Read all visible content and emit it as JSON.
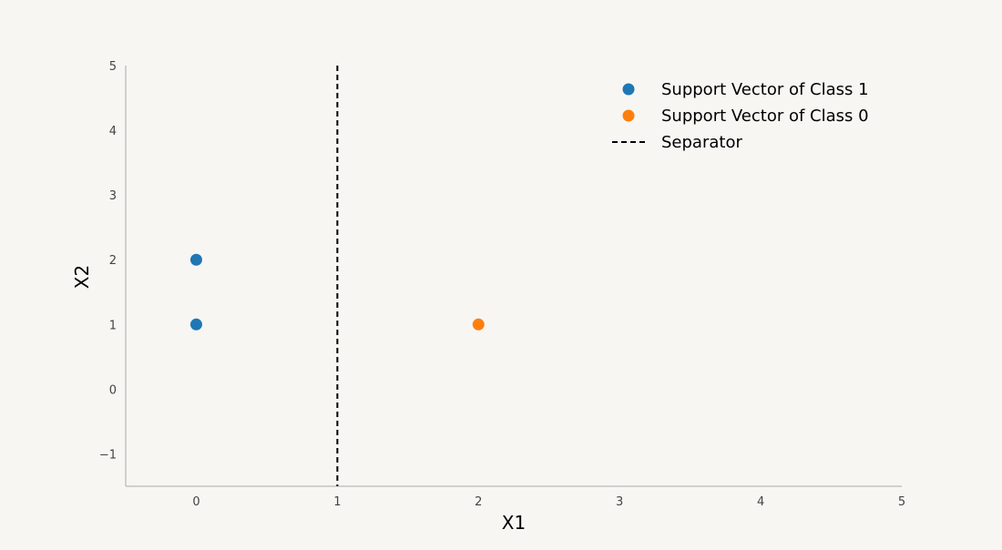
{
  "chart_data": {
    "type": "scatter",
    "title": "",
    "xlabel": "X1",
    "ylabel": "X2",
    "xlim": [
      -0.5,
      5
    ],
    "ylim": [
      -1.5,
      5
    ],
    "xticks": [
      0,
      1,
      2,
      3,
      4,
      5
    ],
    "yticks": [
      -1,
      0,
      1,
      2,
      3,
      4,
      5
    ],
    "xtick_labels": [
      "0",
      "1",
      "2",
      "3",
      "4",
      "5"
    ],
    "ytick_labels": [
      "−1",
      "0",
      "1",
      "2",
      "3",
      "4",
      "5"
    ],
    "grid": false,
    "legend_position": "top-right",
    "series": [
      {
        "name": "Support Vector of Class 1",
        "color": "#1f77b4",
        "points": [
          {
            "x": 0,
            "y": 1
          },
          {
            "x": 0,
            "y": 2
          }
        ]
      },
      {
        "name": "Support Vector of Class 0",
        "color": "#ff7f0e",
        "points": [
          {
            "x": 2,
            "y": 1
          }
        ]
      }
    ],
    "separator": {
      "name": "Separator",
      "x": 1,
      "style": "dashed",
      "color": "#000000"
    }
  }
}
